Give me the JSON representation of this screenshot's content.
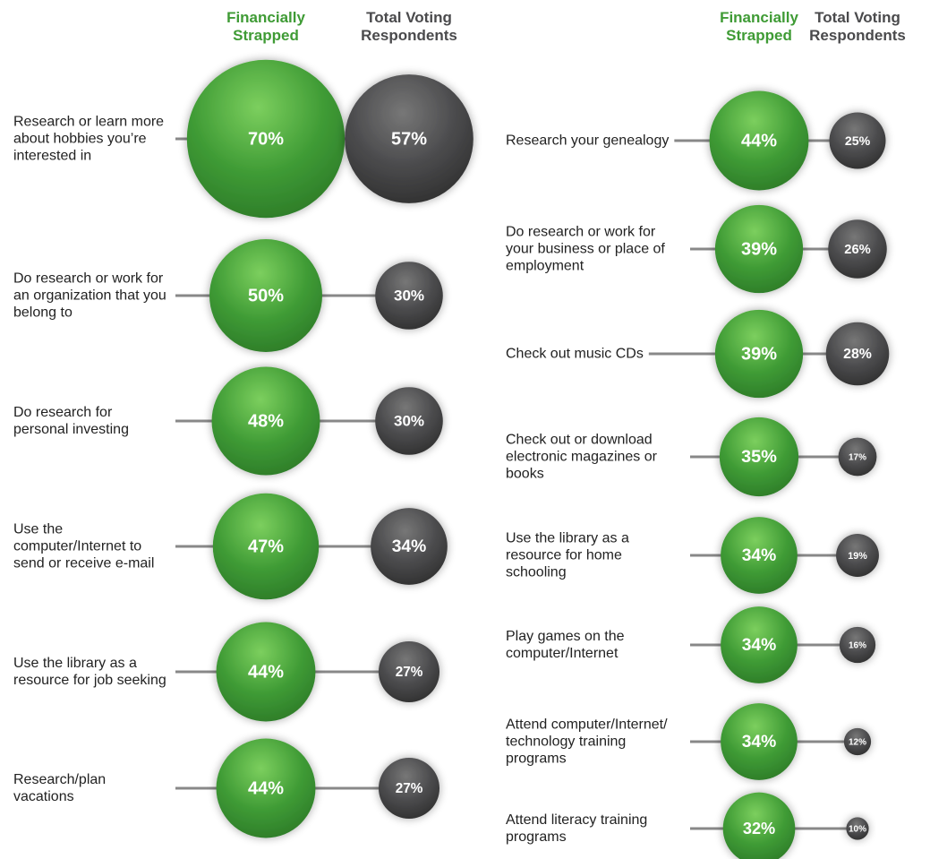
{
  "chart_data": [
    {
      "type": "bubble",
      "categories": [
        "Research or learn more about hobbies you’re interested in",
        "Do research or work for an organization that you belong to",
        "Do research for personal investing",
        "Use the computer/Internet to send or receive e-mail",
        "Use the library as a resource for job seeking",
        "Research/plan vacations"
      ],
      "series": [
        {
          "name": "Financially Strapped",
          "color": "#3f9b35",
          "values": [
            70,
            50,
            48,
            47,
            44,
            44
          ],
          "value_labels": [
            "70%",
            "50%",
            "48%",
            "47%",
            "44%",
            "44%"
          ]
        },
        {
          "name": "Total Voting Respondents",
          "color": "#4a4a4c",
          "values": [
            57,
            30,
            30,
            34,
            27,
            27
          ],
          "value_labels": [
            "57%",
            "30%",
            "30%",
            "34%",
            "27%",
            "27%"
          ]
        }
      ]
    },
    {
      "type": "bubble",
      "categories": [
        "Research your genealogy",
        "Do research or work for your business or place of employment",
        "Check out music CDs",
        "Check out or download electronic magazines or books",
        "Use the library as a resource for home schooling",
        "Play games on the computer/Internet",
        "Attend computer/Internet/ technology training programs",
        "Attend literacy training programs"
      ],
      "series": [
        {
          "name": "Financially Strapped",
          "color": "#3f9b35",
          "values": [
            44,
            39,
            39,
            35,
            34,
            34,
            34,
            32
          ],
          "value_labels": [
            "44%",
            "39%",
            "39%",
            "35%",
            "34%",
            "34%",
            "34%",
            "32%"
          ]
        },
        {
          "name": "Total Voting Respondents",
          "color": "#4a4a4c",
          "values": [
            25,
            26,
            28,
            17,
            19,
            16,
            12,
            10
          ],
          "value_labels": [
            "25%",
            "26%",
            "28%",
            "17%",
            "19%",
            "16%",
            "12%",
            "10%"
          ]
        }
      ]
    }
  ]
}
